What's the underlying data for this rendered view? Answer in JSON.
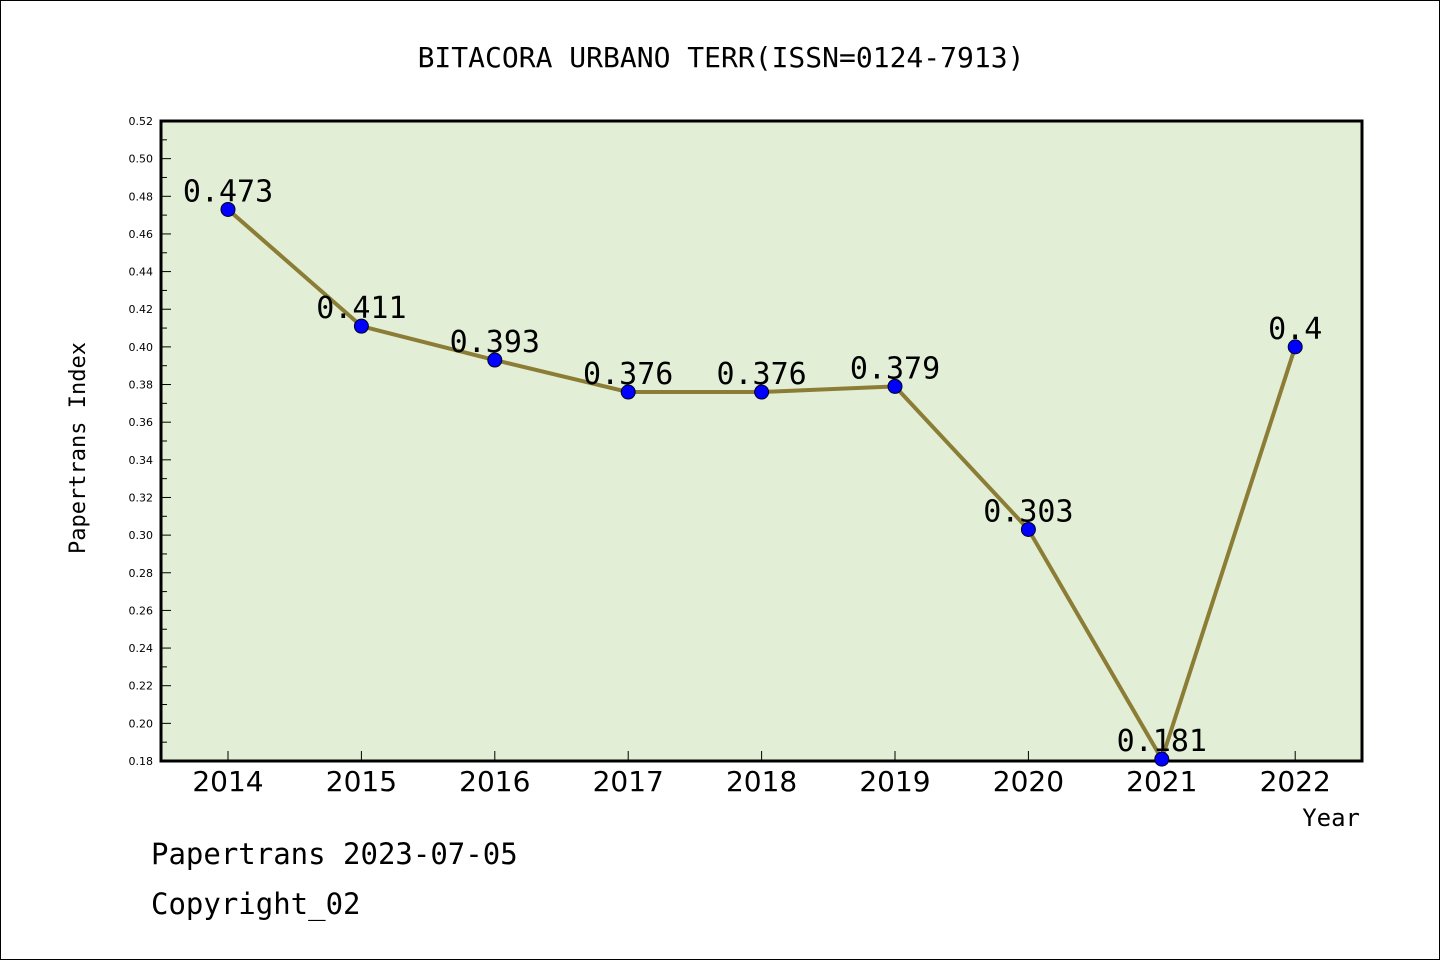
{
  "chart_data": {
    "type": "line",
    "title": "BITACORA URBANO TERR(ISSN=0124-7913)",
    "xlabel": "Year",
    "ylabel": "Papertrans Index",
    "categories": [
      "2014",
      "2015",
      "2016",
      "2017",
      "2018",
      "2019",
      "2020",
      "2021",
      "2022"
    ],
    "values": [
      0.473,
      0.411,
      0.393,
      0.376,
      0.376,
      0.379,
      0.303,
      0.181,
      0.4
    ],
    "data_labels": [
      "0.473",
      "0.411",
      "0.393",
      "0.376",
      "0.376",
      "0.379",
      "0.303",
      "0.181",
      "0.4"
    ],
    "ylim": [
      0.18,
      0.52
    ],
    "yticks": [
      "0.18",
      "0.20",
      "0.22",
      "0.24",
      "0.26",
      "0.28",
      "0.30",
      "0.32",
      "0.34",
      "0.36",
      "0.38",
      "0.40",
      "0.42",
      "0.44",
      "0.46",
      "0.48",
      "0.50",
      "0.52"
    ],
    "grid": false,
    "legend": "none",
    "colors": {
      "plot_background": "#e2efd6",
      "line": "#8b7d36",
      "marker": "#0000ff"
    }
  },
  "footer": {
    "line1": "Papertrans 2023-07-05",
    "line2": "Copyright_02"
  }
}
